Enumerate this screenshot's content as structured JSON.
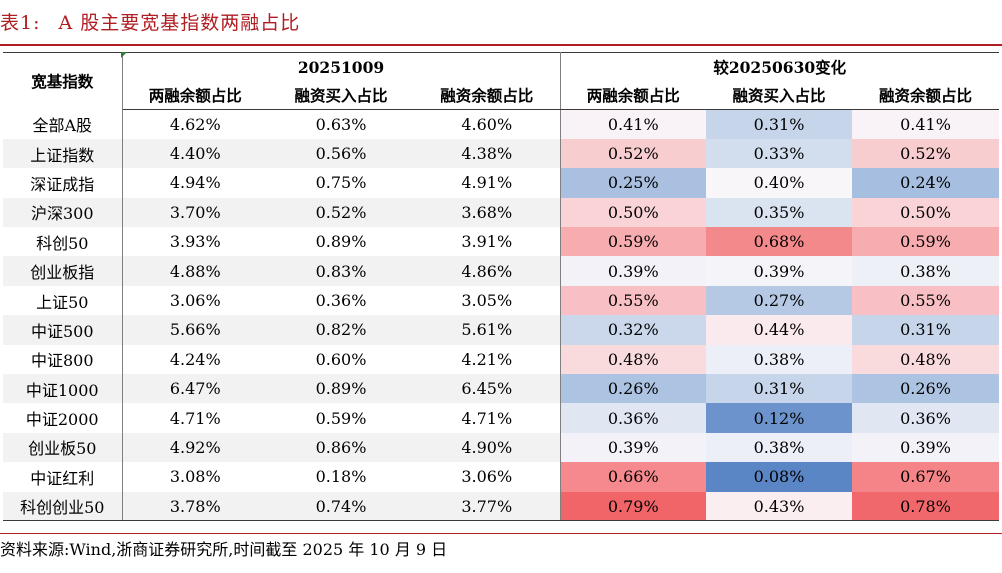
{
  "title": {
    "label": "表1:",
    "text": "A 股主要宽基指数两融占比"
  },
  "table": {
    "index_header": "宽基指数",
    "group1": "20251009",
    "group2": "较20250630变化",
    "sub_headers": [
      "两融余额占比",
      "融资买入占比",
      "融资余额占比",
      "两融余额占比",
      "融资买入占比",
      "融资余额占比"
    ],
    "rows": [
      {
        "name": "全部A股",
        "v": [
          "4.62%",
          "0.63%",
          "4.60%",
          "0.41%",
          "0.31%",
          "0.41%"
        ],
        "c": [
          "#f9f2f6",
          "#c6d5ea",
          "#f9f2f6"
        ]
      },
      {
        "name": "上证指数",
        "v": [
          "4.40%",
          "0.56%",
          "4.38%",
          "0.52%",
          "0.33%",
          "0.52%"
        ],
        "c": [
          "#f8cdd0",
          "#d2ddee",
          "#f8cdd0"
        ]
      },
      {
        "name": "深证成指",
        "v": [
          "4.94%",
          "0.75%",
          "4.91%",
          "0.25%",
          "0.40%",
          "0.24%"
        ],
        "c": [
          "#a9c0e1",
          "#f9f6fa",
          "#a6bfe0"
        ]
      },
      {
        "name": "沪深300",
        "v": [
          "3.70%",
          "0.52%",
          "3.68%",
          "0.50%",
          "0.35%",
          "0.50%"
        ],
        "c": [
          "#f9d3d6",
          "#dae3f0",
          "#f9d3d6"
        ]
      },
      {
        "name": "科创50",
        "v": [
          "3.93%",
          "0.89%",
          "3.91%",
          "0.59%",
          "0.68%",
          "0.59%"
        ],
        "c": [
          "#f7acb0",
          "#f4898c",
          "#f7acb0"
        ]
      },
      {
        "name": "创业板指",
        "v": [
          "4.88%",
          "0.83%",
          "4.86%",
          "0.39%",
          "0.39%",
          "0.38%"
        ],
        "c": [
          "#f3f2f8",
          "#f5f4f9",
          "#eef0f7"
        ]
      },
      {
        "name": "上证50",
        "v": [
          "3.06%",
          "0.36%",
          "3.05%",
          "0.55%",
          "0.27%",
          "0.55%"
        ],
        "c": [
          "#f8c0c4",
          "#b5c8e4",
          "#f8c0c4"
        ]
      },
      {
        "name": "中证500",
        "v": [
          "5.66%",
          "0.82%",
          "5.61%",
          "0.32%",
          "0.44%",
          "0.31%"
        ],
        "c": [
          "#cbd8ec",
          "#faeaee",
          "#c6d5ea"
        ]
      },
      {
        "name": "中证800",
        "v": [
          "4.24%",
          "0.60%",
          "4.21%",
          "0.48%",
          "0.38%",
          "0.48%"
        ],
        "c": [
          "#f9dbde",
          "#eceff7",
          "#f9dbde"
        ]
      },
      {
        "name": "中证1000",
        "v": [
          "6.47%",
          "0.89%",
          "6.45%",
          "0.26%",
          "0.31%",
          "0.26%"
        ],
        "c": [
          "#adc3e2",
          "#c6d5ea",
          "#adc3e2"
        ]
      },
      {
        "name": "中证2000",
        "v": [
          "4.71%",
          "0.59%",
          "4.71%",
          "0.36%",
          "0.12%",
          "0.36%"
        ],
        "c": [
          "#e0e7f3",
          "#6d93cc",
          "#e0e7f3"
        ]
      },
      {
        "name": "创业板50",
        "v": [
          "4.92%",
          "0.86%",
          "4.90%",
          "0.39%",
          "0.38%",
          "0.39%"
        ],
        "c": [
          "#f3f2f8",
          "#eceff7",
          "#f3f2f8"
        ]
      },
      {
        "name": "中证红利",
        "v": [
          "3.08%",
          "0.18%",
          "3.06%",
          "0.66%",
          "0.08%",
          "0.67%"
        ],
        "c": [
          "#f6898d",
          "#5b86c6",
          "#f58488"
        ]
      },
      {
        "name": "科创创业50",
        "v": [
          "3.78%",
          "0.74%",
          "3.77%",
          "0.79%",
          "0.43%",
          "0.78%"
        ],
        "c": [
          "#f16468",
          "#fbeef1",
          "#f1686c"
        ]
      }
    ]
  },
  "source": "资料来源:Wind,浙商证券研究所,时间截至 2025 年 10 月 9 日"
}
